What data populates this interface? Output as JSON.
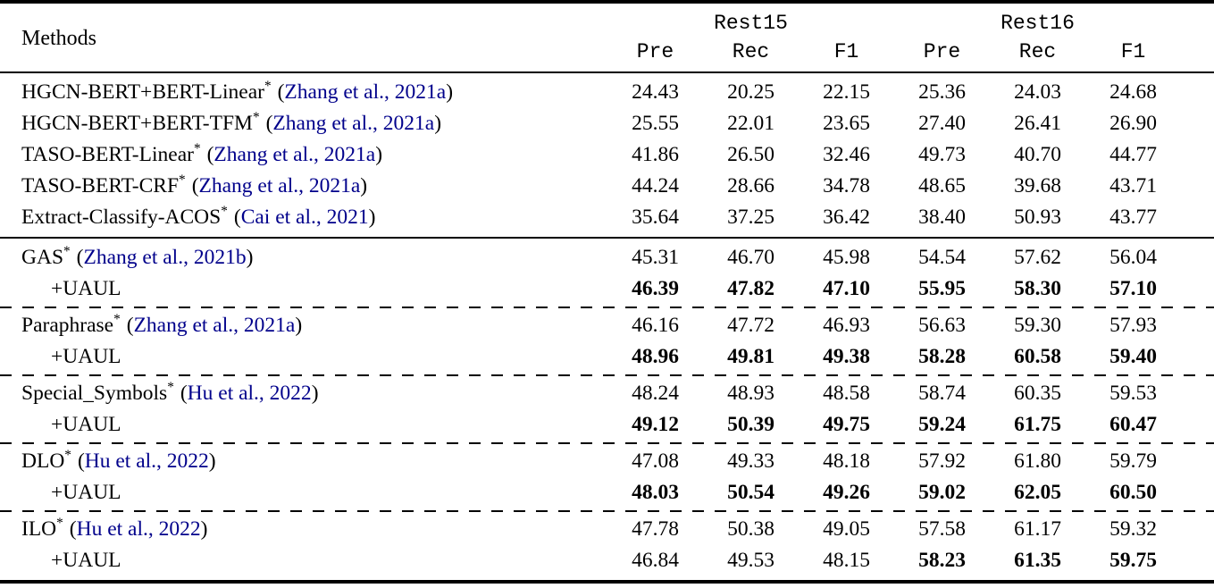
{
  "table": {
    "link_color": "#00008B",
    "symbols": {
      "sup": "*",
      "paren_open": "(",
      "paren_close": ")"
    },
    "header": {
      "methods_label": "Methods",
      "groups": [
        {
          "label": "Rest15"
        },
        {
          "label": "Rest16"
        }
      ],
      "subcolumns": [
        "Pre",
        "Rec",
        "F1",
        "Pre",
        "Rec",
        "F1"
      ]
    },
    "sections": [
      {
        "rows": [
          {
            "method": "HGCN-BERT+BERT-Linear",
            "sup": true,
            "citation": "Zhang et al., 2021a",
            "values": [
              "24.43",
              "20.25",
              "22.15",
              "25.36",
              "24.03",
              "24.68"
            ]
          },
          {
            "method": "HGCN-BERT+BERT-TFM",
            "sup": true,
            "citation": "Zhang et al., 2021a",
            "values": [
              "25.55",
              "22.01",
              "23.65",
              "27.40",
              "26.41",
              "26.90"
            ]
          },
          {
            "method": "TASO-BERT-Linear",
            "sup": true,
            "citation": "Zhang et al., 2021a",
            "values": [
              "41.86",
              "26.50",
              "32.46",
              "49.73",
              "40.70",
              "44.77"
            ]
          },
          {
            "method": "TASO-BERT-CRF",
            "sup": true,
            "citation": "Zhang et al., 2021a",
            "values": [
              "44.24",
              "28.66",
              "34.78",
              "48.65",
              "39.68",
              "43.71"
            ]
          },
          {
            "method": "Extract-Classify-ACOS",
            "sup": true,
            "citation": "Cai et al., 2021",
            "values": [
              "35.64",
              "37.25",
              "36.42",
              "38.40",
              "50.93",
              "43.77"
            ]
          }
        ]
      },
      {
        "groups": [
          {
            "rows": [
              {
                "method": "GAS",
                "sup": true,
                "citation": "Zhang et al., 2021b",
                "values": [
                  "45.31",
                  "46.70",
                  "45.98",
                  "54.54",
                  "57.62",
                  "56.04"
                ]
              },
              {
                "method": "+UAUL",
                "indent": true,
                "values": [
                  "46.39",
                  "47.82",
                  "47.10",
                  "55.95",
                  "58.30",
                  "57.10"
                ],
                "bold": [
                  true,
                  true,
                  true,
                  true,
                  true,
                  true
                ]
              }
            ]
          },
          {
            "rows": [
              {
                "method": "Paraphrase",
                "sup": true,
                "citation": "Zhang et al., 2021a",
                "values": [
                  "46.16",
                  "47.72",
                  "46.93",
                  "56.63",
                  "59.30",
                  "57.93"
                ]
              },
              {
                "method": "+UAUL",
                "indent": true,
                "values": [
                  "48.96",
                  "49.81",
                  "49.38",
                  "58.28",
                  "60.58",
                  "59.40"
                ],
                "bold": [
                  true,
                  true,
                  true,
                  true,
                  true,
                  true
                ]
              }
            ]
          },
          {
            "rows": [
              {
                "method": "Special_Symbols",
                "sup": true,
                "citation": "Hu et al., 2022",
                "values": [
                  "48.24",
                  "48.93",
                  "48.58",
                  "58.74",
                  "60.35",
                  "59.53"
                ]
              },
              {
                "method": "+UAUL",
                "indent": true,
                "values": [
                  "49.12",
                  "50.39",
                  "49.75",
                  "59.24",
                  "61.75",
                  "60.47"
                ],
                "bold": [
                  true,
                  true,
                  true,
                  true,
                  true,
                  true
                ]
              }
            ]
          },
          {
            "rows": [
              {
                "method": "DLO",
                "sup": true,
                "citation": "Hu et al., 2022",
                "values": [
                  "47.08",
                  "49.33",
                  "48.18",
                  "57.92",
                  "61.80",
                  "59.79"
                ]
              },
              {
                "method": "+UAUL",
                "indent": true,
                "values": [
                  "48.03",
                  "50.54",
                  "49.26",
                  "59.02",
                  "62.05",
                  "60.50"
                ],
                "bold": [
                  true,
                  true,
                  true,
                  true,
                  true,
                  true
                ]
              }
            ]
          },
          {
            "rows": [
              {
                "method": "ILO",
                "sup": true,
                "citation": "Hu et al., 2022",
                "values": [
                  "47.78",
                  "50.38",
                  "49.05",
                  "57.58",
                  "61.17",
                  "59.32"
                ]
              },
              {
                "method": "+UAUL",
                "indent": true,
                "values": [
                  "46.84",
                  "49.53",
                  "48.15",
                  "58.23",
                  "61.35",
                  "59.75"
                ],
                "bold": [
                  false,
                  false,
                  false,
                  true,
                  true,
                  true
                ]
              }
            ]
          }
        ]
      }
    ]
  }
}
